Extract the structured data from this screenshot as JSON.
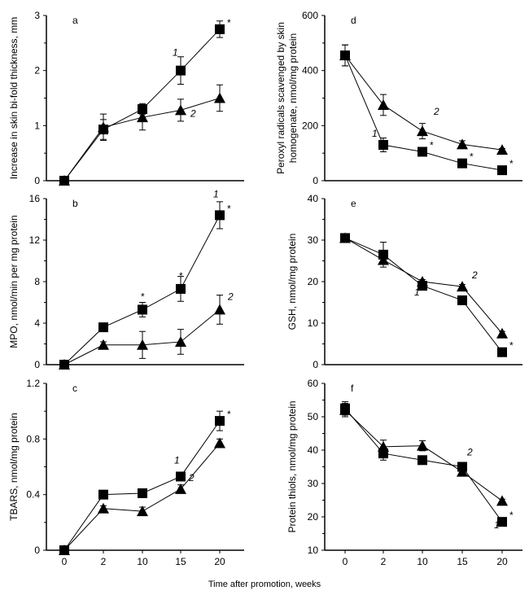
{
  "xlabel": "Time after promotion, weeks",
  "chart_data": [
    {
      "type": "line",
      "panel": "a",
      "ylabel": "Increase in skin bi-fold thickness, mm",
      "ylim": [
        0,
        3
      ],
      "yticks": [
        "0",
        "1",
        "2",
        "3"
      ],
      "x": [
        0,
        2,
        10,
        15,
        20
      ],
      "series": [
        {
          "name": "1",
          "marker": "square",
          "values": [
            0,
            0.93,
            1.3,
            2.0,
            2.75
          ],
          "err": [
            0,
            0.18,
            0.1,
            0.25,
            0.15
          ],
          "significant": [
            false,
            false,
            false,
            false,
            true
          ]
        },
        {
          "name": "2",
          "marker": "triangle",
          "values": [
            0,
            0.97,
            1.15,
            1.28,
            1.5
          ],
          "err": [
            0,
            0.24,
            0.23,
            0.2,
            0.24
          ],
          "significant": [
            false,
            false,
            false,
            false,
            false
          ]
        }
      ]
    },
    {
      "type": "line",
      "panel": "b",
      "ylabel": "MPO, nmol/min per mg protein",
      "ylim": [
        0,
        16
      ],
      "yticks": [
        "0",
        "4",
        "8",
        "12",
        "16"
      ],
      "x": [
        0,
        2,
        10,
        15,
        20
      ],
      "series": [
        {
          "name": "1",
          "marker": "square",
          "values": [
            0,
            3.6,
            5.3,
            7.3,
            14.4
          ],
          "err": [
            0,
            0.3,
            0.7,
            1.2,
            1.3
          ],
          "significant": [
            false,
            false,
            true,
            true,
            true
          ]
        },
        {
          "name": "2",
          "marker": "triangle",
          "values": [
            0,
            1.9,
            1.9,
            2.2,
            5.3
          ],
          "err": [
            0,
            0.3,
            1.3,
            1.2,
            1.4
          ],
          "significant": [
            false,
            false,
            false,
            false,
            false
          ]
        }
      ]
    },
    {
      "type": "line",
      "panel": "c",
      "ylabel": "TBARS, nmol/mg protein",
      "ylim": [
        0,
        1.2
      ],
      "yticks": [
        "0",
        "0.4",
        "0.8",
        "1.2"
      ],
      "x": [
        0,
        2,
        10,
        15,
        20
      ],
      "series": [
        {
          "name": "1",
          "marker": "square",
          "values": [
            0,
            0.4,
            0.41,
            0.53,
            0.93
          ],
          "err": [
            0,
            0.02,
            0.02,
            0.02,
            0.07
          ],
          "significant": [
            false,
            false,
            false,
            false,
            true
          ]
        },
        {
          "name": "2",
          "marker": "triangle",
          "values": [
            0,
            0.3,
            0.28,
            0.44,
            0.77
          ],
          "err": [
            0,
            0.02,
            0.03,
            0.03,
            0.03
          ],
          "significant": [
            false,
            false,
            false,
            false,
            false
          ]
        }
      ]
    },
    {
      "type": "line",
      "panel": "d",
      "ylabel": "Peroxyl radicals scavenged by skin homogenate, nmol/mg protein",
      "ylim": [
        0,
        600
      ],
      "yticks": [
        "0",
        "200",
        "400",
        "600"
      ],
      "x": [
        0,
        2,
        10,
        15,
        20
      ],
      "series": [
        {
          "name": "1",
          "marker": "square",
          "values": [
            455,
            130,
            105,
            63,
            38
          ],
          "err": [
            38,
            25,
            5,
            5,
            5
          ],
          "significant": [
            false,
            false,
            true,
            true,
            true
          ]
        },
        {
          "name": "2",
          "marker": "triangle",
          "values": [
            455,
            275,
            180,
            132,
            112
          ],
          "err": [
            38,
            38,
            28,
            13,
            5
          ],
          "significant": [
            false,
            false,
            false,
            false,
            false
          ]
        }
      ]
    },
    {
      "type": "line",
      "panel": "e",
      "ylabel": "GSH, nmol/mg protein",
      "ylim": [
        0,
        40
      ],
      "yticks": [
        "0",
        "10",
        "20",
        "30",
        "40"
      ],
      "x": [
        0,
        2,
        10,
        15,
        20
      ],
      "series": [
        {
          "name": "1",
          "marker": "square",
          "values": [
            30.5,
            26.5,
            19,
            15.5,
            3
          ],
          "err": [
            0.8,
            3,
            0.5,
            0.5,
            0.3
          ],
          "significant": [
            false,
            false,
            false,
            false,
            true
          ]
        },
        {
          "name": "2",
          "marker": "triangle",
          "values": [
            30.5,
            25.2,
            20,
            18.8,
            7.5
          ],
          "err": [
            0.8,
            1,
            0.5,
            0.5,
            0.5
          ],
          "significant": [
            false,
            false,
            false,
            false,
            false
          ]
        }
      ]
    },
    {
      "type": "line",
      "panel": "f",
      "ylabel": "Protein thiols, nmol/mg protein",
      "ylim": [
        10,
        60
      ],
      "yticks": [
        "10",
        "20",
        "30",
        "40",
        "50",
        "60"
      ],
      "x": [
        0,
        2,
        10,
        15,
        20
      ],
      "series": [
        {
          "name": "1",
          "marker": "square",
          "values": [
            52.5,
            39,
            37,
            35,
            18.5
          ],
          "err": [
            2,
            2,
            0.5,
            0.5,
            0.5
          ],
          "significant": [
            false,
            false,
            false,
            false,
            true
          ]
        },
        {
          "name": "2",
          "marker": "triangle",
          "values": [
            52,
            41,
            41.3,
            33.5,
            24.8
          ],
          "err": [
            2,
            2,
            1.5,
            0.5,
            0.5
          ],
          "significant": [
            false,
            false,
            false,
            false,
            false
          ]
        }
      ]
    }
  ]
}
